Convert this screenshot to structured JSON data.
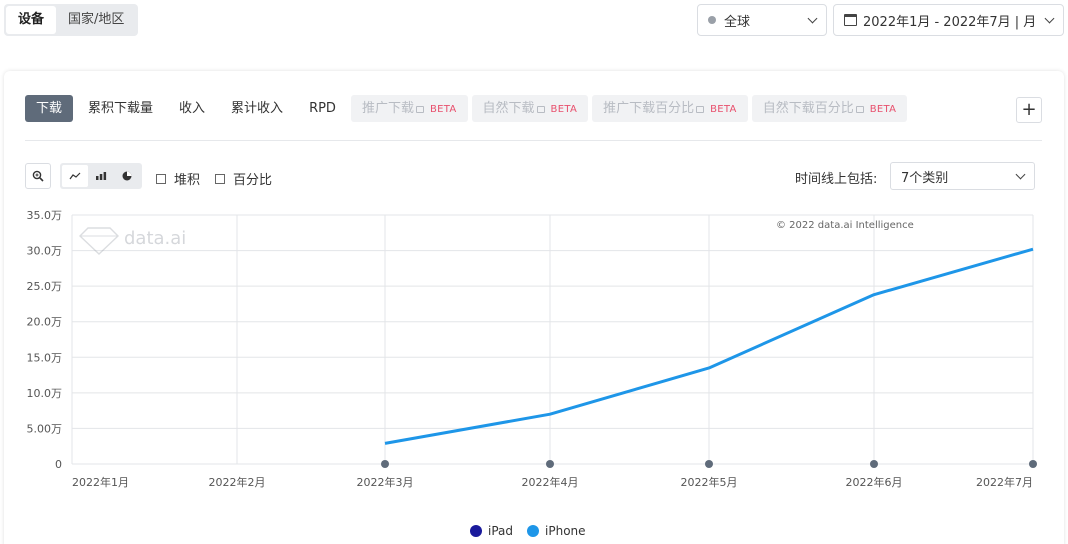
{
  "top": {
    "segments": [
      {
        "label": "设备",
        "active": true
      },
      {
        "label": "国家/地区",
        "active": false
      }
    ],
    "region": "全球",
    "date_range": "2022年1月 - 2022年7月 | 月"
  },
  "tabs": [
    {
      "label": "下载",
      "state": "active"
    },
    {
      "label": "累积下载量",
      "state": "normal"
    },
    {
      "label": "收入",
      "state": "normal"
    },
    {
      "label": "累计收入",
      "state": "normal"
    },
    {
      "label": "RPD",
      "state": "normal"
    },
    {
      "label": "推广下载",
      "state": "disabled",
      "badge": "BETA"
    },
    {
      "label": "自然下载",
      "state": "disabled",
      "badge": "BETA"
    },
    {
      "label": "推广下载百分比",
      "state": "disabled",
      "badge": "BETA"
    },
    {
      "label": "自然下载百分比",
      "state": "disabled",
      "badge": "BETA"
    }
  ],
  "add_label": "+",
  "toolbar": {
    "stack_label": "堆积",
    "percent_label": "百分比",
    "timeline_label": "时间线上包括:",
    "timeline_value": "7个类别"
  },
  "watermark": {
    "logo_text": "data.ai",
    "copyright": "© 2022 data.ai Intelligence"
  },
  "colors": {
    "iphone": "#1e96e8",
    "ipad": "#1a1a9c",
    "active_tab": "#5f6b7a",
    "beta": "#e8506d"
  },
  "chart_data": {
    "type": "line",
    "categories": [
      "2022年1月",
      "2022年2月",
      "2022年3月",
      "2022年4月",
      "2022年5月",
      "2022年6月",
      "2022年7月"
    ],
    "y_ticks": [
      "0",
      "5.00万",
      "10.0万",
      "15.0万",
      "20.0万",
      "25.0万",
      "30.0万",
      "35.0万"
    ],
    "ylim": [
      0,
      350000
    ],
    "series": [
      {
        "name": "iPad",
        "color": "#1a1a9c",
        "values": [
          null,
          null,
          0,
          0,
          0,
          0,
          0
        ]
      },
      {
        "name": "iPhone",
        "color": "#1e96e8",
        "values": [
          null,
          null,
          29000,
          70000,
          135000,
          238000,
          302000
        ]
      }
    ],
    "legend": "bottom-center",
    "grid": true
  }
}
